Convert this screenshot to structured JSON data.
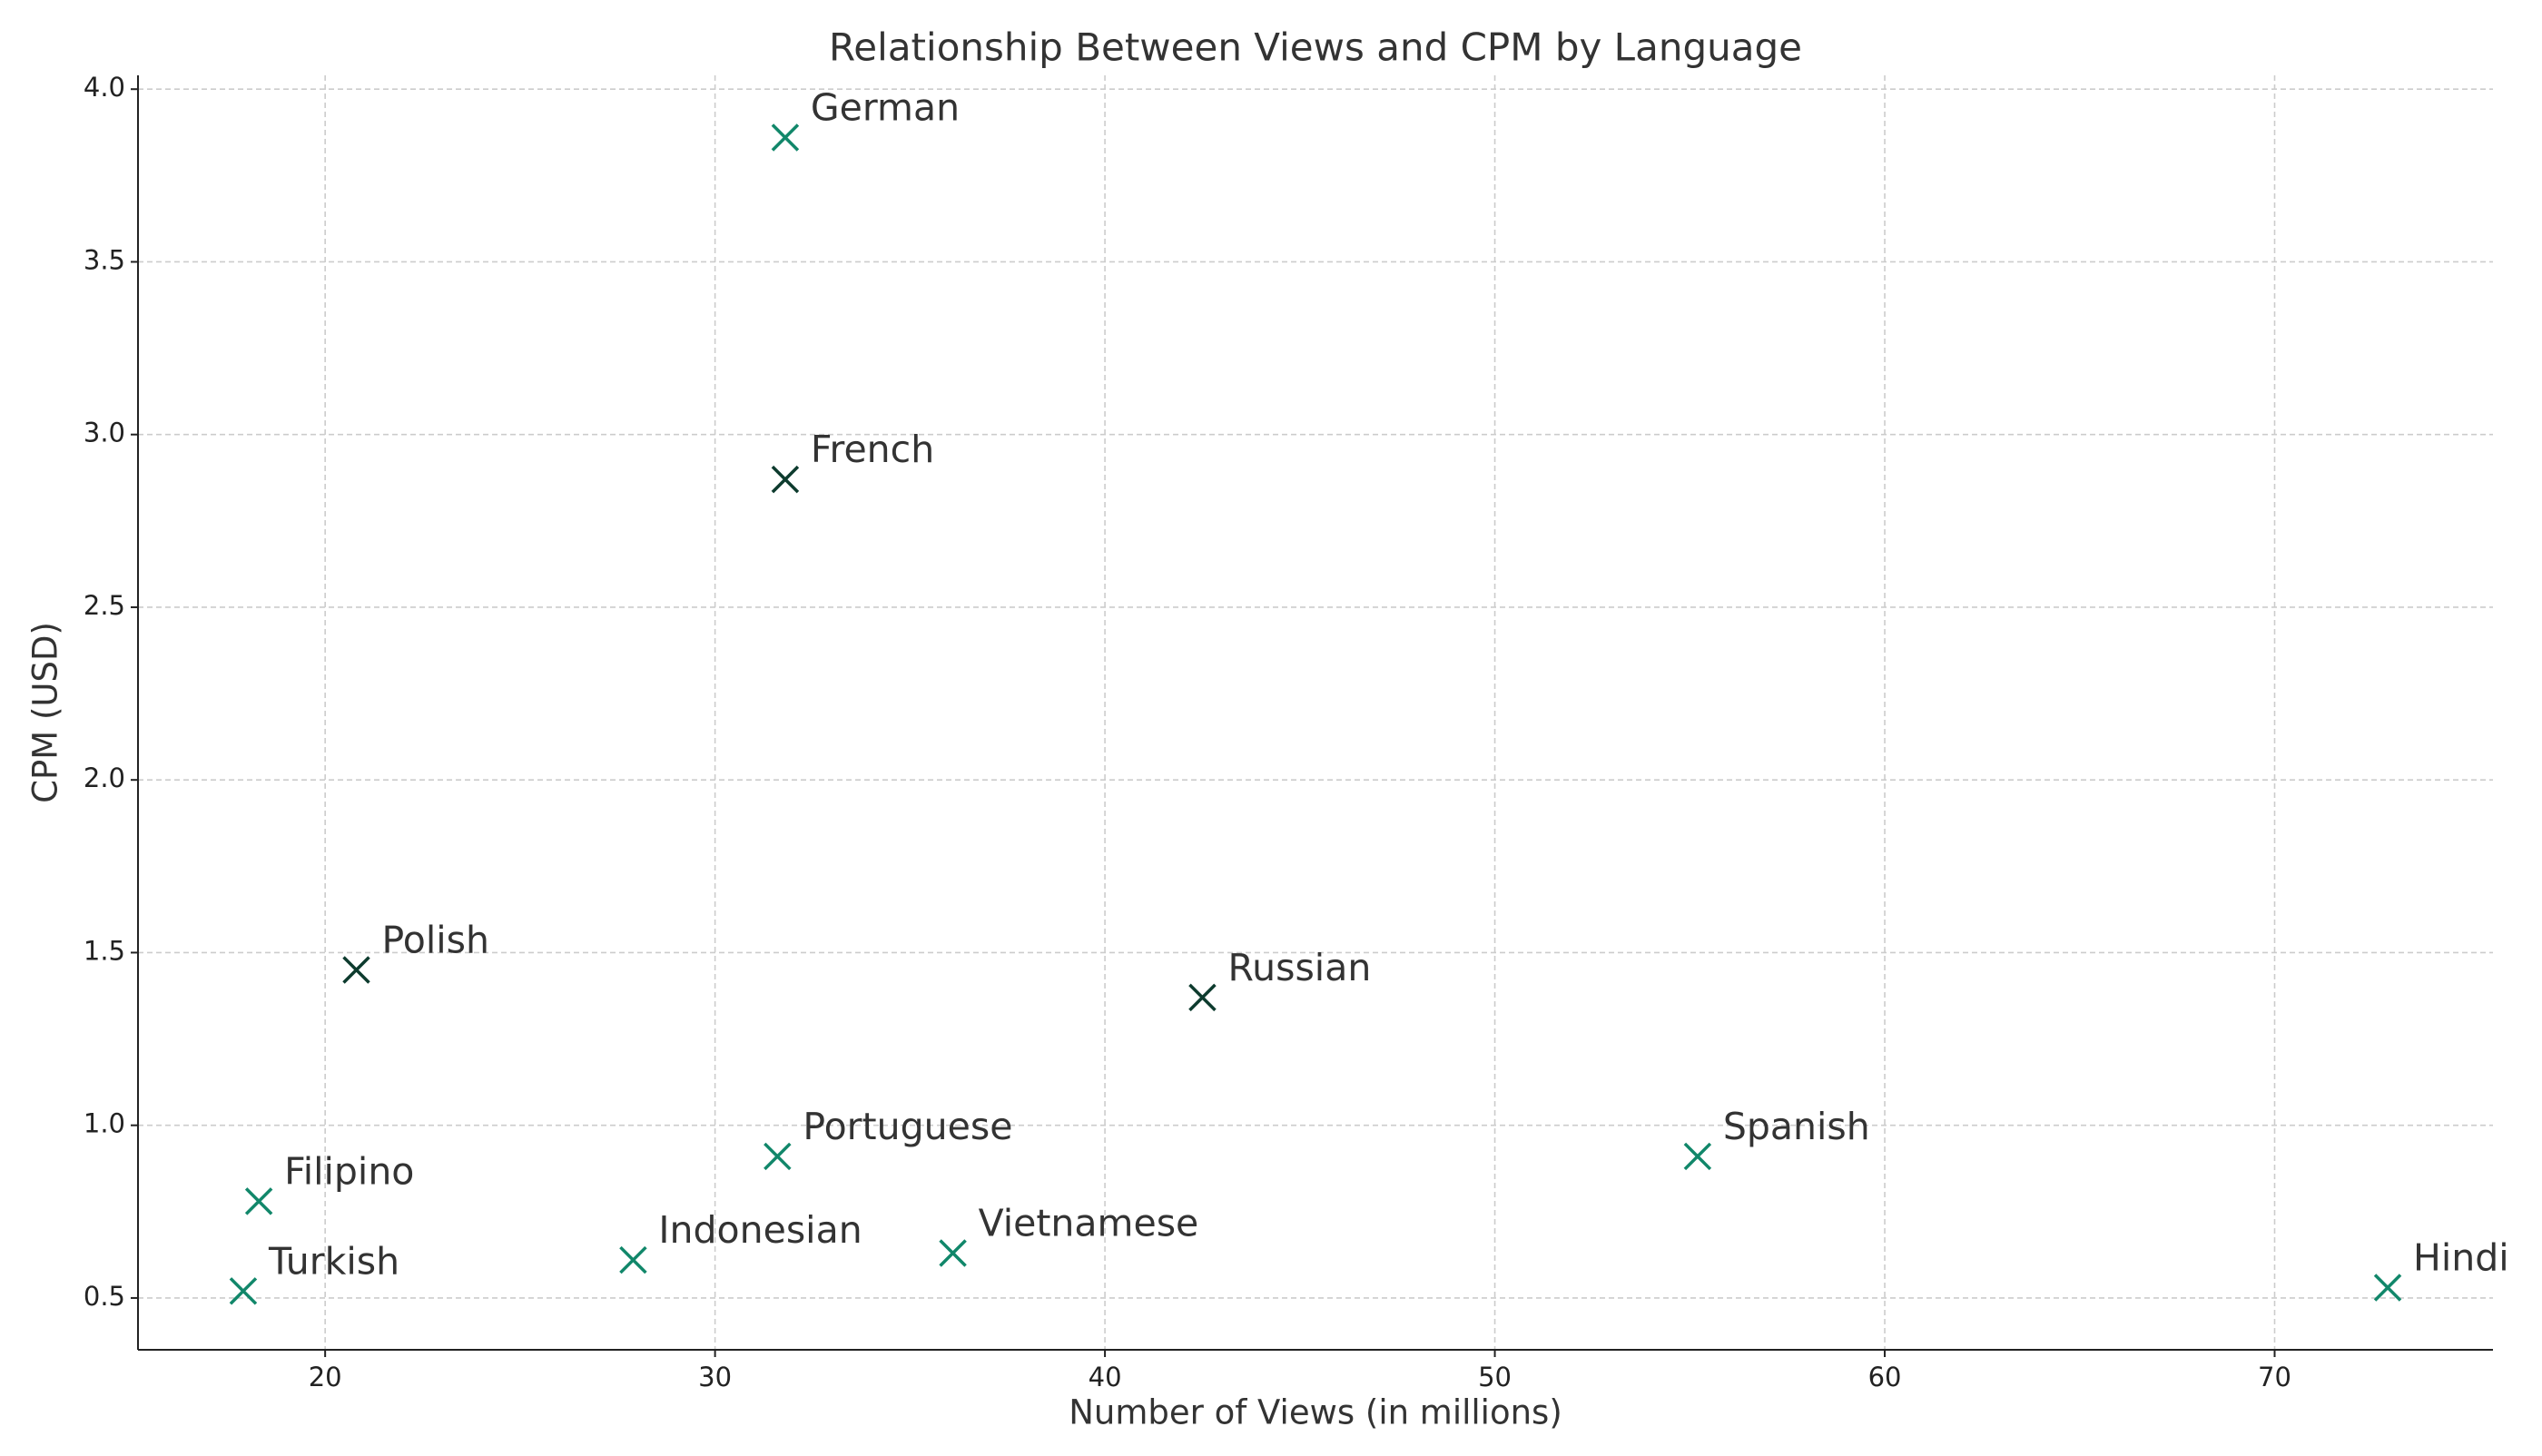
{
  "chart_data": {
    "type": "scatter",
    "title": "Relationship Between Views and CPM by Language",
    "x_label": "Number of Views (in millions)",
    "y_label": "CPM (USD)",
    "labels": [
      "German",
      "French",
      "Polish",
      "Russian",
      "Portuguese",
      "Spanish",
      "Filipino",
      "Indonesian",
      "Vietnamese",
      "Turkish",
      "Hindi"
    ],
    "x": [
      31.8,
      31.8,
      20.8,
      42.5,
      31.6,
      55.2,
      18.3,
      27.9,
      36.1,
      17.9,
      72.9
    ],
    "values": [
      3.86,
      2.87,
      1.45,
      1.37,
      0.91,
      0.91,
      0.78,
      0.61,
      0.63,
      0.52,
      0.53
    ],
    "colors": [
      "#11876a",
      "#0d3b2e",
      "#0d3b2e",
      "#0d3b2e",
      "#11876a",
      "#11876a",
      "#11876a",
      "#11876a",
      "#11876a",
      "#11876a",
      "#11876a"
    ],
    "xlim": [
      15.2,
      75.6
    ],
    "ylim": [
      0.35,
      4.04
    ],
    "xticks": [
      20,
      30,
      40,
      50,
      60,
      70
    ],
    "yticks": [
      0.5,
      {
        "value": 1,
        "label": "1.0"
      },
      1.5,
      {
        "value": 2,
        "label": "2.0"
      },
      2.5,
      {
        "value": 3,
        "label": "3.0"
      },
      3.5,
      {
        "value": 4,
        "label": "4.0"
      }
    ],
    "grid": true
  }
}
